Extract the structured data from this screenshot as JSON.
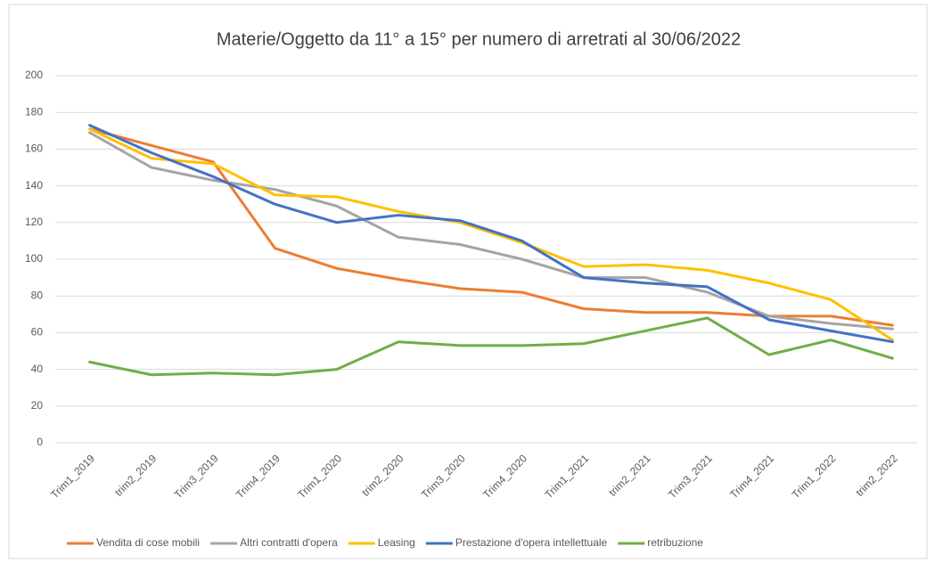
{
  "chart_data": {
    "type": "line",
    "title": "Materie/Oggetto da 11° a 15° per numero di arretrati al 30/06/2022",
    "categories": [
      "Trim1_2019",
      "trim2_2019",
      "Trim3_2019",
      "Trim4_2019",
      "Trim1_2020",
      "trim2_2020",
      "Trim3_2020",
      "Trim4_2020",
      "Trim1_2021",
      "trim2_2021",
      "Trim3_2021",
      "Trim4_2021",
      "Trim1_2022",
      "trim2_2022"
    ],
    "series": [
      {
        "name": "Vendita di cose mobili",
        "color": "#ED7D31",
        "values": [
          171,
          162,
          153,
          106,
          95,
          89,
          84,
          82,
          73,
          71,
          71,
          69,
          69,
          64
        ]
      },
      {
        "name": "Altri contratti d'opera",
        "color": "#A5A5A5",
        "values": [
          169,
          150,
          143,
          138,
          129,
          112,
          108,
          100,
          90,
          90,
          82,
          69,
          65,
          62
        ]
      },
      {
        "name": "Leasing",
        "color": "#FFC000",
        "values": [
          171,
          155,
          152,
          135,
          134,
          126,
          120,
          109,
          96,
          97,
          94,
          87,
          78,
          56
        ]
      },
      {
        "name": "Prestazione d'opera intellettuale",
        "color": "#4472C4",
        "values": [
          173,
          158,
          145,
          130,
          120,
          124,
          121,
          110,
          90,
          87,
          85,
          67,
          61,
          55
        ]
      },
      {
        "name": "retribuzione",
        "color": "#70AD47",
        "values": [
          44,
          37,
          38,
          37,
          40,
          55,
          53,
          53,
          54,
          61,
          68,
          48,
          56,
          46
        ]
      }
    ],
    "ylim": [
      0,
      200
    ],
    "yticks": [
      0,
      20,
      40,
      60,
      80,
      100,
      120,
      140,
      160,
      180,
      200
    ],
    "grid": true,
    "legend": "bottom"
  }
}
